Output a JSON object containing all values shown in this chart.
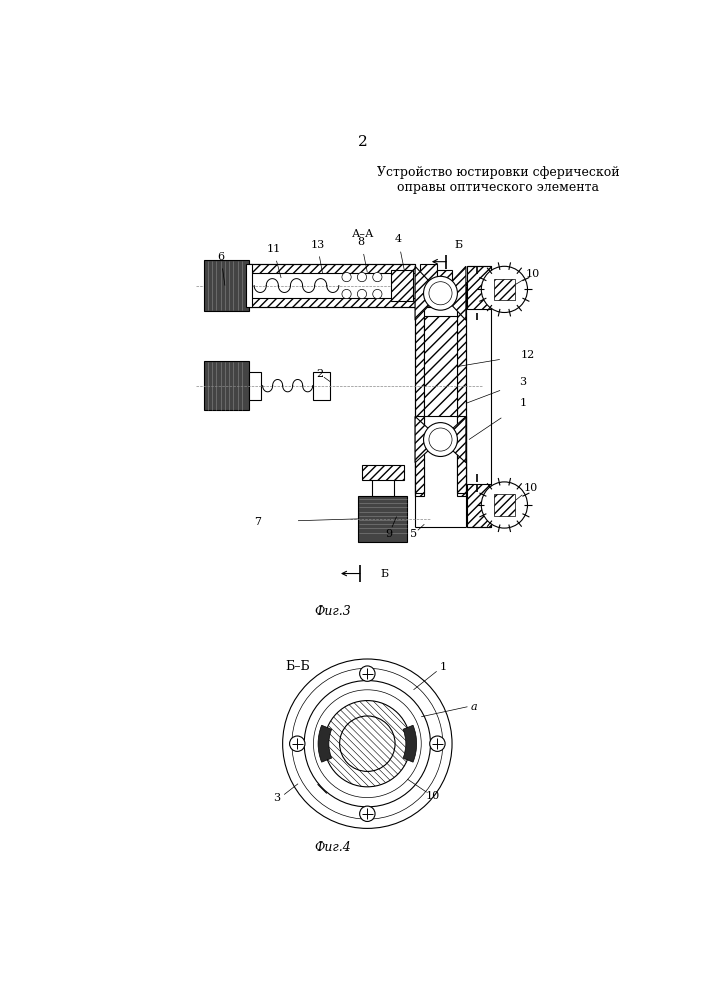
{
  "page_number": "2",
  "title_line1": "Устройство юстировки сферической",
  "title_line2": "оправы оптического элемента",
  "fig3_label": "Фиг.3",
  "fig4_label": "Фиг.4",
  "bg_color": "#ffffff",
  "line_color": "#000000"
}
